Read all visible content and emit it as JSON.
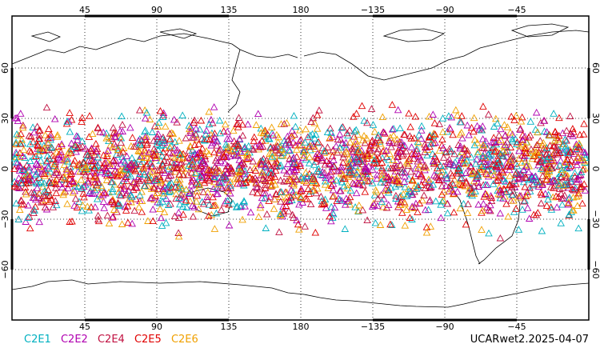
{
  "map": {
    "top_ticks": [
      "45",
      "90",
      "135",
      "180",
      "−135",
      "−90",
      "−45"
    ],
    "bottom_ticks": [
      "45",
      "90",
      "135",
      "180",
      "−135",
      "−90",
      "−45"
    ],
    "left_ticks": [
      "60",
      "30",
      "0",
      "−30",
      "−60"
    ],
    "right_ticks": [
      "60",
      "30",
      "0",
      "−30",
      "−60"
    ]
  },
  "legend": [
    {
      "label": "C2E1",
      "color": "#00b0c0"
    },
    {
      "label": "C2E2",
      "color": "#b000b0"
    },
    {
      "label": "C2E4",
      "color": "#c01040"
    },
    {
      "label": "C2E5",
      "color": "#e00000"
    },
    {
      "label": "C2E6",
      "color": "#f0a000"
    }
  ],
  "source_label": "UCARwet2.2025-04-07"
}
